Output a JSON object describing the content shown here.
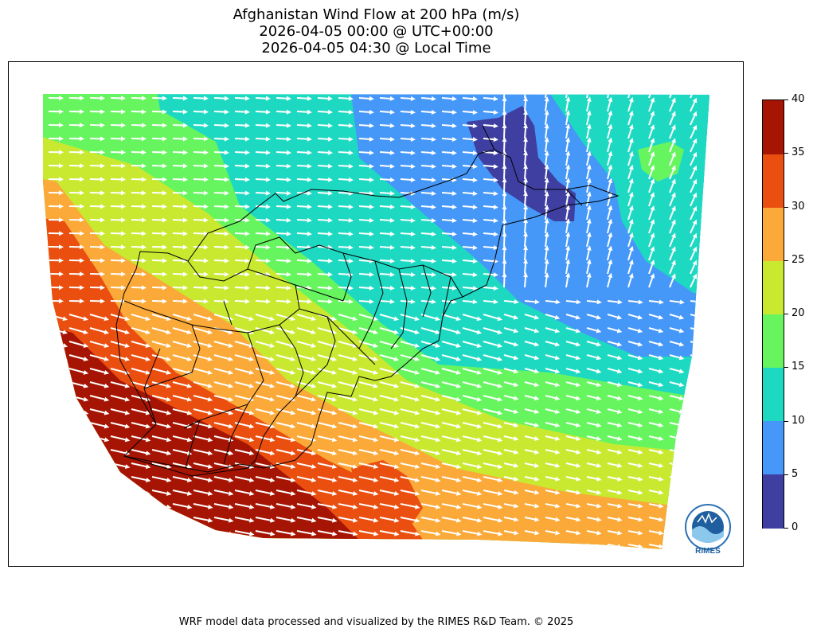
{
  "title": {
    "line1": "Afghanistan Wind Flow at 200 hPa (m/s)",
    "line2": "2026-04-05 00:00 @ UTC+00:00",
    "line3": "2026-04-05 04:30 @ Local Time"
  },
  "colorbar": {
    "ticks": [
      "0",
      "5",
      "10",
      "15",
      "20",
      "25",
      "30",
      "35",
      "40"
    ],
    "levels": [
      {
        "range": "0-5",
        "color": "#3e3fa1"
      },
      {
        "range": "5-10",
        "color": "#4597f8"
      },
      {
        "range": "10-15",
        "color": "#1ed9c2"
      },
      {
        "range": "15-20",
        "color": "#66f55f"
      },
      {
        "range": "20-25",
        "color": "#c9e930"
      },
      {
        "range": "25-30",
        "color": "#fba938"
      },
      {
        "range": "30-35",
        "color": "#ea4f10"
      },
      {
        "range": "35-40",
        "color": "#a61503"
      }
    ]
  },
  "logo": {
    "text": "RIMES",
    "icon": "rimes-logo-icon"
  },
  "footer": "WRF model data processed and visualized by the RIMES R&D Team. © 2025"
}
